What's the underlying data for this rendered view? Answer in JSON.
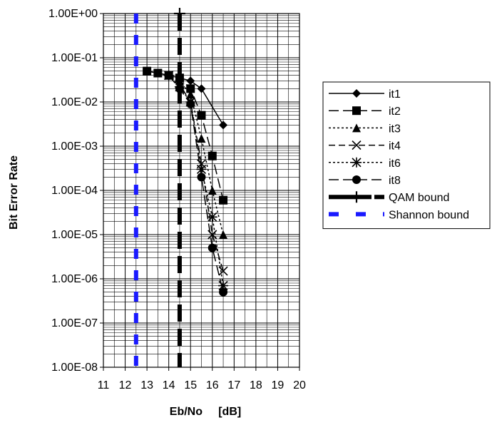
{
  "chart_data": {
    "type": "line",
    "title": "",
    "xlabel": "Eb/No     [dB]",
    "ylabel": "Bit Error Rate",
    "xlim": [
      11,
      20
    ],
    "ylim": [
      1e-08,
      1
    ],
    "y_scale": "log",
    "x_ticks": [
      "11",
      "12",
      "13",
      "14",
      "15",
      "16",
      "17",
      "18",
      "19",
      "20"
    ],
    "y_ticks": [
      "1.00E+00",
      "1.00E-01",
      "1.00E-02",
      "1.00E-03",
      "1.00E-04",
      "1.00E-05",
      "1.00E-06",
      "1.00E-07",
      "1.00E-08"
    ],
    "grid": true,
    "legend_position": "right",
    "series": [
      {
        "name": "it1",
        "marker": "diamond",
        "dash": "solid",
        "color": "#000000",
        "points": [
          [
            13,
            0.05
          ],
          [
            13.5,
            0.045
          ],
          [
            14,
            0.04
          ],
          [
            14.5,
            0.035
          ],
          [
            15,
            0.03
          ],
          [
            15.5,
            0.02
          ],
          [
            16.5,
            0.003
          ]
        ]
      },
      {
        "name": "it2",
        "marker": "square",
        "dash": "long-dash",
        "color": "#000000",
        "points": [
          [
            13,
            0.05
          ],
          [
            13.5,
            0.045
          ],
          [
            14,
            0.04
          ],
          [
            14.5,
            0.035
          ],
          [
            15,
            0.02
          ],
          [
            15.5,
            0.005
          ],
          [
            16,
            0.0006
          ],
          [
            16.5,
            6e-05
          ]
        ]
      },
      {
        "name": "it3",
        "marker": "triangle",
        "dash": "dotted",
        "color": "#000000",
        "points": [
          [
            13,
            0.05
          ],
          [
            13.5,
            0.045
          ],
          [
            14,
            0.04
          ],
          [
            14.5,
            0.03
          ],
          [
            15,
            0.015
          ],
          [
            15.5,
            0.0015
          ],
          [
            16,
            0.0001
          ],
          [
            16.5,
            1e-05
          ]
        ]
      },
      {
        "name": "it4",
        "marker": "x",
        "dash": "dash",
        "color": "#000000",
        "points": [
          [
            14,
            0.04
          ],
          [
            14.5,
            0.025
          ],
          [
            15,
            0.01
          ],
          [
            15.5,
            0.0004
          ],
          [
            16,
            1e-05
          ],
          [
            16.5,
            1.5e-06
          ]
        ]
      },
      {
        "name": "it6",
        "marker": "asterisk",
        "dash": "dotted",
        "color": "#000000",
        "points": [
          [
            14,
            0.04
          ],
          [
            14.5,
            0.022
          ],
          [
            15,
            0.01
          ],
          [
            15.5,
            0.0003
          ],
          [
            16,
            2.5e-05
          ],
          [
            16.5,
            7e-07
          ]
        ]
      },
      {
        "name": "it8",
        "marker": "circle",
        "dash": "long-dash",
        "color": "#000000",
        "points": [
          [
            14,
            0.04
          ],
          [
            14.5,
            0.02
          ],
          [
            15,
            0.009
          ],
          [
            15.5,
            0.0002
          ],
          [
            16,
            5e-06
          ],
          [
            16.5,
            5e-07
          ]
        ]
      },
      {
        "name": "QAM bound",
        "marker": "plus",
        "dash": "heavy-dash",
        "color": "#000000",
        "points": [
          [
            14.5,
            1
          ],
          [
            14.5,
            1e-08
          ]
        ]
      },
      {
        "name": "Shannon bound",
        "marker": "none",
        "dash": "heavy-dash",
        "color": "#1a1aff",
        "points": [
          [
            12.5,
            1
          ],
          [
            12.5,
            1e-08
          ]
        ]
      }
    ]
  }
}
